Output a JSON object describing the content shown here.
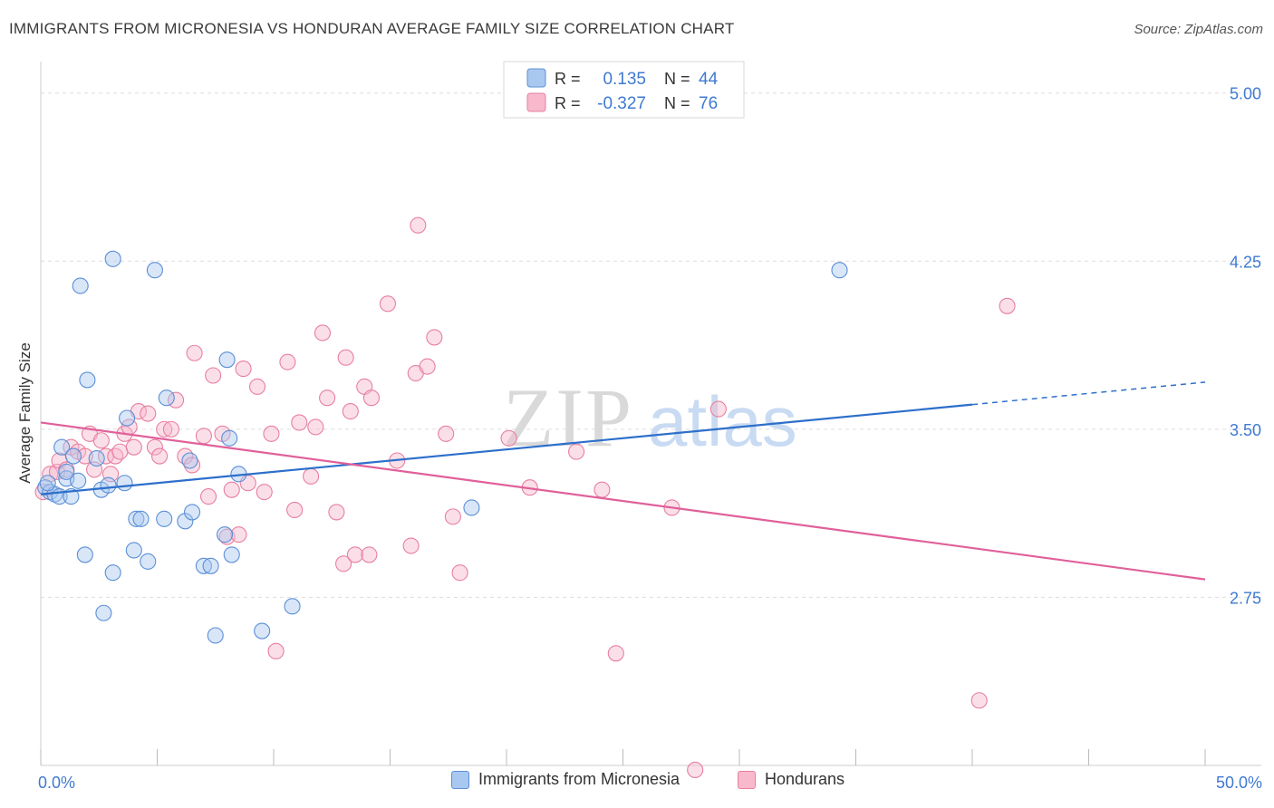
{
  "title": "IMMIGRANTS FROM MICRONESIA VS HONDURAN AVERAGE FAMILY SIZE CORRELATION CHART",
  "source": "Source: ZipAtlas.com",
  "watermark": {
    "zip": "ZIP",
    "atlas": "atlas"
  },
  "colors": {
    "blue_fill": "#a9c8f0",
    "blue_stroke": "#5b8fd6",
    "blue_line": "#2d6fcb",
    "pink_fill": "#f7b9cb",
    "pink_stroke": "#e87fa0",
    "pink_line": "#e0609a",
    "axis_text": "#3f7ad1",
    "grid": "#dddddd"
  },
  "legend_top": {
    "rows": [
      {
        "r_label": "R =",
        "r_value": "0.135",
        "n_label": "N =",
        "n_value": "44",
        "color": "blue"
      },
      {
        "r_label": "R =",
        "r_value": "-0.327",
        "n_label": "N =",
        "n_value": "76",
        "color": "pink"
      }
    ]
  },
  "legend_bottom": [
    {
      "label": "Immigrants from Micronesia",
      "color": "blue"
    },
    {
      "label": "Hondurans",
      "color": "pink"
    }
  ],
  "chart_data": {
    "type": "scatter",
    "title": "IMMIGRANTS FROM MICRONESIA VS HONDURAN AVERAGE FAMILY SIZE CORRELATION CHART",
    "xlabel": "",
    "ylabel": "Average Family Size",
    "xlim": [
      0,
      50
    ],
    "ylim": [
      2.0,
      5.1
    ],
    "x_tick_labels": [
      "0.0%",
      "50.0%"
    ],
    "y_ticks": [
      2.75,
      3.5,
      4.25,
      5.0
    ],
    "y_tick_labels": [
      "2.75",
      "3.50",
      "4.25",
      "5.00"
    ],
    "grid": true,
    "legend_placement": "top-center",
    "series": [
      {
        "name": "Immigrants from Micronesia",
        "color": "blue",
        "trend": {
          "x0": 0,
          "y0": 3.21,
          "x1": 40,
          "y1": 3.61,
          "dashed_to": 50,
          "dashed_y": 3.71
        },
        "points": [
          [
            0.2,
            3.24
          ],
          [
            0.4,
            3.22
          ],
          [
            0.6,
            3.21
          ],
          [
            0.8,
            3.2
          ],
          [
            1.1,
            3.28
          ],
          [
            1.3,
            3.2
          ],
          [
            0.9,
            3.42
          ],
          [
            1.4,
            3.38
          ],
          [
            1.6,
            3.27
          ],
          [
            1.7,
            4.14
          ],
          [
            2.0,
            3.72
          ],
          [
            2.4,
            3.37
          ],
          [
            2.6,
            3.23
          ],
          [
            2.9,
            3.25
          ],
          [
            2.7,
            2.68
          ],
          [
            1.9,
            2.94
          ],
          [
            3.1,
            4.26
          ],
          [
            3.6,
            3.26
          ],
          [
            3.7,
            3.55
          ],
          [
            4.0,
            2.96
          ],
          [
            4.1,
            3.1
          ],
          [
            4.3,
            3.1
          ],
          [
            4.6,
            2.91
          ],
          [
            3.1,
            2.86
          ],
          [
            4.9,
            4.21
          ],
          [
            5.3,
            3.1
          ],
          [
            5.4,
            3.64
          ],
          [
            6.2,
            3.09
          ],
          [
            6.4,
            3.36
          ],
          [
            6.5,
            3.13
          ],
          [
            7.0,
            2.89
          ],
          [
            7.3,
            2.89
          ],
          [
            7.5,
            2.58
          ],
          [
            7.9,
            3.03
          ],
          [
            8.0,
            3.81
          ],
          [
            8.1,
            3.46
          ],
          [
            8.2,
            2.94
          ],
          [
            8.5,
            3.3
          ],
          [
            9.5,
            2.6
          ],
          [
            10.8,
            2.71
          ],
          [
            18.5,
            3.15
          ],
          [
            34.3,
            4.21
          ],
          [
            0.3,
            3.26
          ],
          [
            1.1,
            3.31
          ]
        ]
      },
      {
        "name": "Hondurans",
        "color": "pink",
        "trend": {
          "x0": 0,
          "y0": 3.53,
          "x1": 50,
          "y1": 2.83
        },
        "points": [
          [
            0.1,
            3.22
          ],
          [
            0.4,
            3.3
          ],
          [
            0.7,
            3.31
          ],
          [
            0.8,
            3.36
          ],
          [
            1.1,
            3.32
          ],
          [
            1.3,
            3.42
          ],
          [
            1.6,
            3.4
          ],
          [
            1.9,
            3.38
          ],
          [
            2.1,
            3.48
          ],
          [
            2.3,
            3.32
          ],
          [
            2.6,
            3.45
          ],
          [
            2.8,
            3.38
          ],
          [
            3.0,
            3.3
          ],
          [
            3.2,
            3.38
          ],
          [
            3.4,
            3.4
          ],
          [
            3.6,
            3.48
          ],
          [
            3.8,
            3.51
          ],
          [
            4.0,
            3.42
          ],
          [
            4.2,
            3.58
          ],
          [
            4.6,
            3.57
          ],
          [
            4.9,
            3.42
          ],
          [
            5.1,
            3.38
          ],
          [
            5.3,
            3.5
          ],
          [
            5.6,
            3.5
          ],
          [
            5.8,
            3.63
          ],
          [
            6.2,
            3.38
          ],
          [
            6.5,
            3.34
          ],
          [
            6.6,
            3.84
          ],
          [
            7.0,
            3.47
          ],
          [
            7.2,
            3.2
          ],
          [
            7.4,
            3.74
          ],
          [
            7.8,
            3.48
          ],
          [
            8.0,
            3.02
          ],
          [
            8.2,
            3.23
          ],
          [
            8.5,
            3.03
          ],
          [
            8.7,
            3.77
          ],
          [
            8.9,
            3.26
          ],
          [
            9.3,
            3.69
          ],
          [
            9.6,
            3.22
          ],
          [
            9.9,
            3.48
          ],
          [
            10.1,
            2.51
          ],
          [
            10.6,
            3.8
          ],
          [
            10.9,
            3.14
          ],
          [
            11.1,
            3.53
          ],
          [
            11.6,
            3.29
          ],
          [
            11.8,
            3.51
          ],
          [
            12.1,
            3.93
          ],
          [
            12.3,
            3.64
          ],
          [
            12.7,
            3.13
          ],
          [
            13.0,
            2.9
          ],
          [
            13.1,
            3.82
          ],
          [
            13.3,
            3.58
          ],
          [
            13.5,
            2.94
          ],
          [
            13.9,
            3.69
          ],
          [
            14.1,
            2.94
          ],
          [
            14.2,
            3.64
          ],
          [
            14.9,
            4.06
          ],
          [
            15.3,
            3.36
          ],
          [
            15.9,
            2.98
          ],
          [
            16.1,
            3.75
          ],
          [
            16.2,
            4.41
          ],
          [
            16.6,
            3.78
          ],
          [
            16.9,
            3.91
          ],
          [
            17.4,
            3.48
          ],
          [
            17.7,
            3.11
          ],
          [
            18.0,
            2.86
          ],
          [
            20.1,
            3.46
          ],
          [
            21.0,
            3.24
          ],
          [
            23.0,
            3.4
          ],
          [
            24.1,
            3.23
          ],
          [
            24.7,
            2.5
          ],
          [
            27.1,
            3.15
          ],
          [
            28.1,
            1.98
          ],
          [
            29.1,
            3.59
          ],
          [
            40.3,
            2.29
          ],
          [
            41.5,
            4.05
          ]
        ]
      }
    ]
  }
}
